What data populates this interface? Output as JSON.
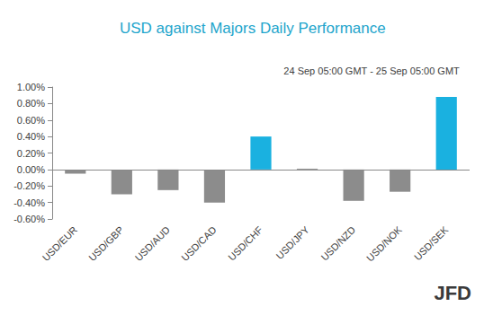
{
  "chart_data": {
    "type": "bar",
    "title": "USD against Majors Daily Performance",
    "subtitle": "24 Sep 05:00 GMT - 25 Sep 05:00 GMT",
    "annotations": [
      "JFD"
    ],
    "categories": [
      "USD/EUR",
      "USD/GBP",
      "USD/AUD",
      "USD/CAD",
      "USD/CHF",
      "USD/JPY",
      "USD/NZD",
      "USD/NOK",
      "USD/SEK"
    ],
    "values": [
      -0.05,
      -0.3,
      -0.25,
      -0.4,
      0.4,
      0.01,
      -0.38,
      -0.27,
      0.88
    ],
    "colors": [
      "#8c8c8c",
      "#8c8c8c",
      "#8c8c8c",
      "#8c8c8c",
      "#1ab1e0",
      "#8c8c8c",
      "#8c8c8c",
      "#8c8c8c",
      "#1ab1e0"
    ],
    "ylim": [
      -0.6,
      1.0
    ],
    "yticks": [
      {
        "value": -0.6,
        "label": "-0.60%"
      },
      {
        "value": -0.4,
        "label": "-0.40%"
      },
      {
        "value": -0.2,
        "label": "-0.20%"
      },
      {
        "value": 0,
        "label": "0.00%"
      },
      {
        "value": 0.2,
        "label": "0.20%"
      },
      {
        "value": 0.4,
        "label": "0.40%"
      },
      {
        "value": 0.6,
        "label": "0.60%"
      },
      {
        "value": 0.8,
        "label": "0.80%"
      },
      {
        "value": 1.0,
        "label": "1.00%"
      }
    ],
    "grid": false
  }
}
